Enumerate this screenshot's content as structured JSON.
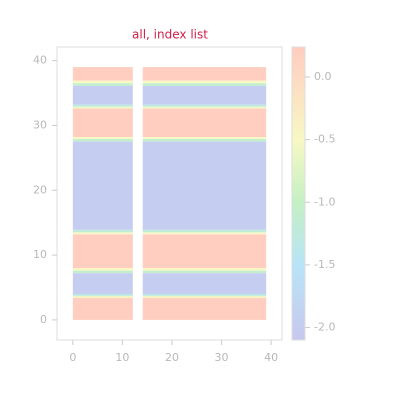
{
  "chart_data": {
    "type": "heatmap",
    "title": "all, index list",
    "xlim": [
      -3.2,
      42.2
    ],
    "ylim": [
      -3.1,
      42.1
    ],
    "xticks": [
      0,
      10,
      20,
      30,
      40
    ],
    "yticks": [
      0,
      10,
      20,
      30,
      40
    ],
    "x_segments": [
      [
        0,
        12.1
      ],
      [
        14.1,
        39
      ]
    ],
    "bands": [
      {
        "y0": 36.9,
        "y1": 39,
        "value": 0.2
      },
      {
        "y0": 36.5,
        "y1": 36.9,
        "value": -0.5
      },
      {
        "y0": 36.1,
        "y1": 36.5,
        "value": -1.1
      },
      {
        "y0": 33.2,
        "y1": 36.1,
        "value": -2.0
      },
      {
        "y0": 32.9,
        "y1": 33.2,
        "value": -1.3
      },
      {
        "y0": 32.6,
        "y1": 32.9,
        "value": -0.6
      },
      {
        "y0": 28.2,
        "y1": 32.6,
        "value": 0.2
      },
      {
        "y0": 27.9,
        "y1": 28.2,
        "value": -0.5
      },
      {
        "y0": 27.5,
        "y1": 27.9,
        "value": -1.1
      },
      {
        "y0": 13.9,
        "y1": 27.5,
        "value": -2.0
      },
      {
        "y0": 13.5,
        "y1": 13.9,
        "value": -1.2
      },
      {
        "y0": 13.2,
        "y1": 13.5,
        "value": -0.5
      },
      {
        "y0": 8.0,
        "y1": 13.2,
        "value": 0.2
      },
      {
        "y0": 7.6,
        "y1": 8.0,
        "value": -0.5
      },
      {
        "y0": 7.2,
        "y1": 7.6,
        "value": -1.1
      },
      {
        "y0": 4.0,
        "y1": 7.2,
        "value": -2.0
      },
      {
        "y0": 3.7,
        "y1": 4.0,
        "value": -1.3
      },
      {
        "y0": 3.4,
        "y1": 3.7,
        "value": -0.6
      },
      {
        "y0": 0,
        "y1": 3.4,
        "value": 0.2
      }
    ],
    "clim": [
      -2.1,
      0.24
    ],
    "cticks": [
      {
        "value": 0,
        "label": "0.0"
      },
      -0.5,
      {
        "value": -1,
        "label": "-1.0"
      },
      -1.5,
      {
        "value": -2,
        "label": "-2.0"
      }
    ],
    "colorscale": [
      [
        -2.1,
        "#c8c8ee"
      ],
      [
        -1.5,
        "#b8e4f8"
      ],
      [
        -1.0,
        "#c4f0c4"
      ],
      [
        -0.5,
        "#f8f8c4"
      ],
      [
        0.24,
        "#ffccc0"
      ]
    ]
  }
}
